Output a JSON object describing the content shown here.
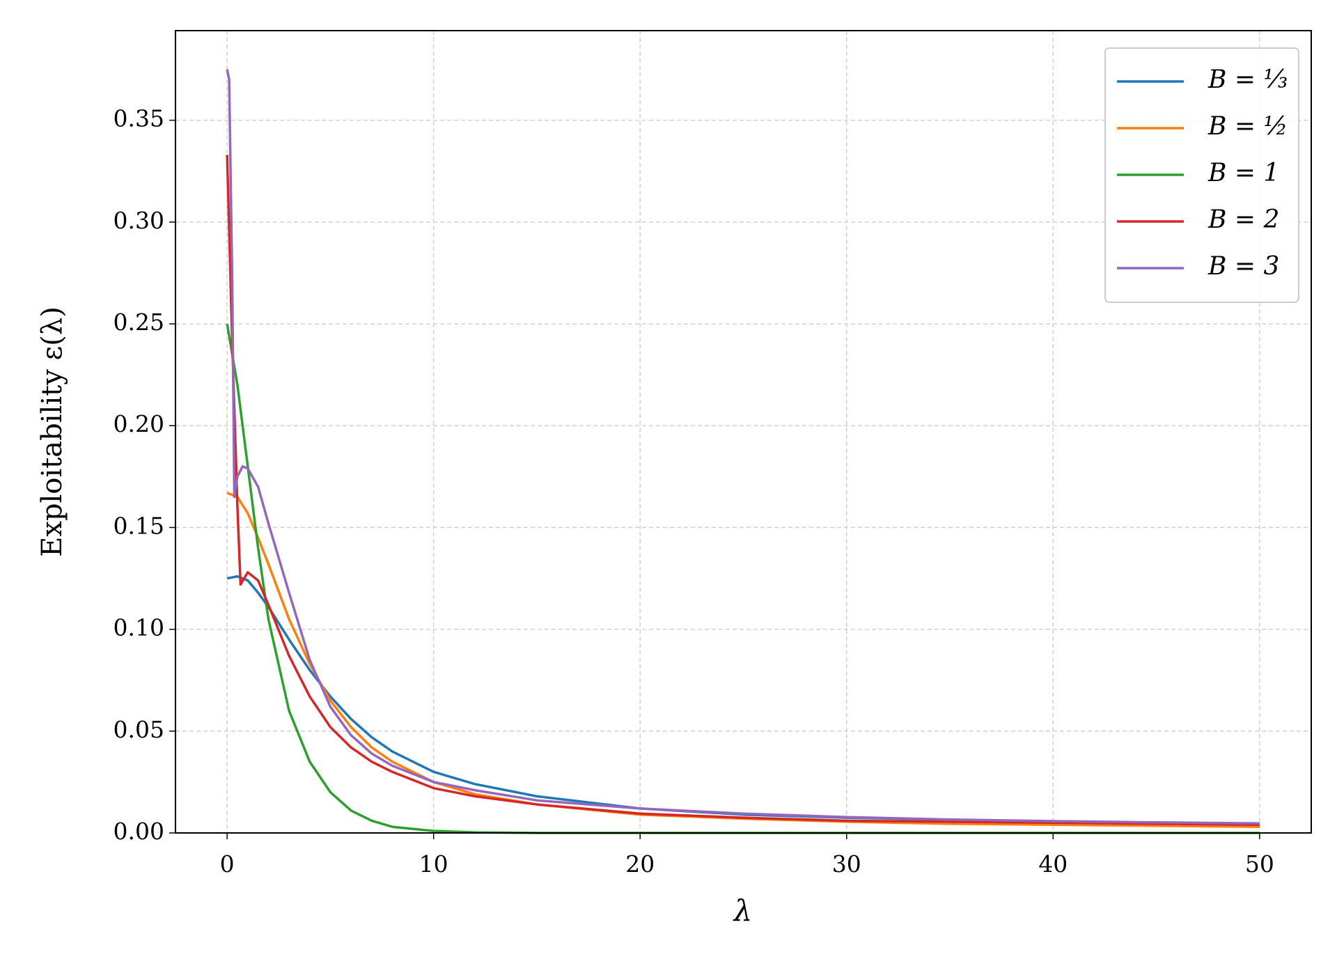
{
  "chart_data": {
    "type": "line",
    "x_label": "λ",
    "y_label": "Exploitability ε(λ)",
    "xlim": [
      -2.5,
      52.5
    ],
    "ylim": [
      0,
      0.394
    ],
    "xticks": [
      0,
      10,
      20,
      30,
      40,
      50
    ],
    "yticks": [
      {
        "value": 0,
        "label": "0.00"
      },
      {
        "value": 0.05,
        "label": "0.05"
      },
      {
        "value": 0.1,
        "label": "0.10"
      },
      {
        "value": 0.15,
        "label": "0.15"
      },
      {
        "value": 0.2,
        "label": "0.20"
      },
      {
        "value": 0.25,
        "label": "0.25"
      },
      {
        "value": 0.3,
        "label": "0.30"
      },
      {
        "value": 0.35,
        "label": "0.35"
      }
    ],
    "grid": true,
    "legend": "upper right",
    "series": [
      {
        "name": "B = ⅓",
        "color": "#1f77b4",
        "x": [
          0,
          0.5,
          1,
          1.5,
          2,
          3,
          4,
          5,
          6,
          7,
          8,
          10,
          12,
          15,
          20,
          25,
          30,
          35,
          40,
          45,
          50
        ],
        "values": [
          0.125,
          0.126,
          0.124,
          0.118,
          0.111,
          0.095,
          0.08,
          0.067,
          0.056,
          0.047,
          0.04,
          0.03,
          0.024,
          0.018,
          0.012,
          0.009,
          0.0075,
          0.0065,
          0.0055,
          0.005,
          0.0045
        ]
      },
      {
        "name": "B = ½",
        "color": "#ff7f0e",
        "x": [
          0,
          0.5,
          1,
          1.5,
          2,
          3,
          4,
          5,
          6,
          7,
          8,
          10,
          12,
          15,
          20,
          25,
          30,
          35,
          40,
          45,
          50
        ],
        "values": [
          0.167,
          0.165,
          0.157,
          0.145,
          0.132,
          0.105,
          0.083,
          0.065,
          0.052,
          0.042,
          0.035,
          0.025,
          0.019,
          0.014,
          0.009,
          0.007,
          0.0055,
          0.0045,
          0.004,
          0.0035,
          0.003
        ]
      },
      {
        "name": "B = 1",
        "color": "#2ca02c",
        "x": [
          0,
          0.5,
          1,
          1.5,
          2,
          3,
          4,
          5,
          6,
          7,
          8,
          10,
          12,
          15,
          20,
          30,
          40,
          50
        ],
        "values": [
          0.25,
          0.22,
          0.18,
          0.14,
          0.105,
          0.06,
          0.035,
          0.02,
          0.011,
          0.006,
          0.003,
          0.001,
          0.0003,
          0,
          0,
          0,
          0,
          0
        ]
      },
      {
        "name": "B = 2",
        "color": "#d62728",
        "x": [
          0,
          0.25,
          0.5,
          0.65,
          1,
          1.5,
          2,
          3,
          4,
          5,
          6,
          7,
          8,
          10,
          12,
          15,
          20,
          25,
          30,
          35,
          40,
          45,
          50
        ],
        "values": [
          0.333,
          0.24,
          0.16,
          0.122,
          0.128,
          0.124,
          0.112,
          0.087,
          0.067,
          0.052,
          0.042,
          0.035,
          0.03,
          0.022,
          0.018,
          0.014,
          0.0095,
          0.0075,
          0.006,
          0.0055,
          0.005,
          0.0045,
          0.004
        ]
      },
      {
        "name": "B = 3",
        "color": "#9467bd",
        "x": [
          0,
          0.1,
          0.25,
          0.35,
          0.5,
          0.75,
          1,
          1.5,
          2,
          3,
          4,
          5,
          6,
          7,
          8,
          10,
          12,
          15,
          20,
          25,
          30,
          35,
          40,
          45,
          50
        ],
        "values": [
          0.375,
          0.37,
          0.27,
          0.165,
          0.175,
          0.18,
          0.179,
          0.17,
          0.152,
          0.118,
          0.085,
          0.062,
          0.048,
          0.039,
          0.033,
          0.025,
          0.021,
          0.016,
          0.012,
          0.0095,
          0.0078,
          0.0066,
          0.0058,
          0.0052,
          0.0047
        ]
      }
    ]
  }
}
